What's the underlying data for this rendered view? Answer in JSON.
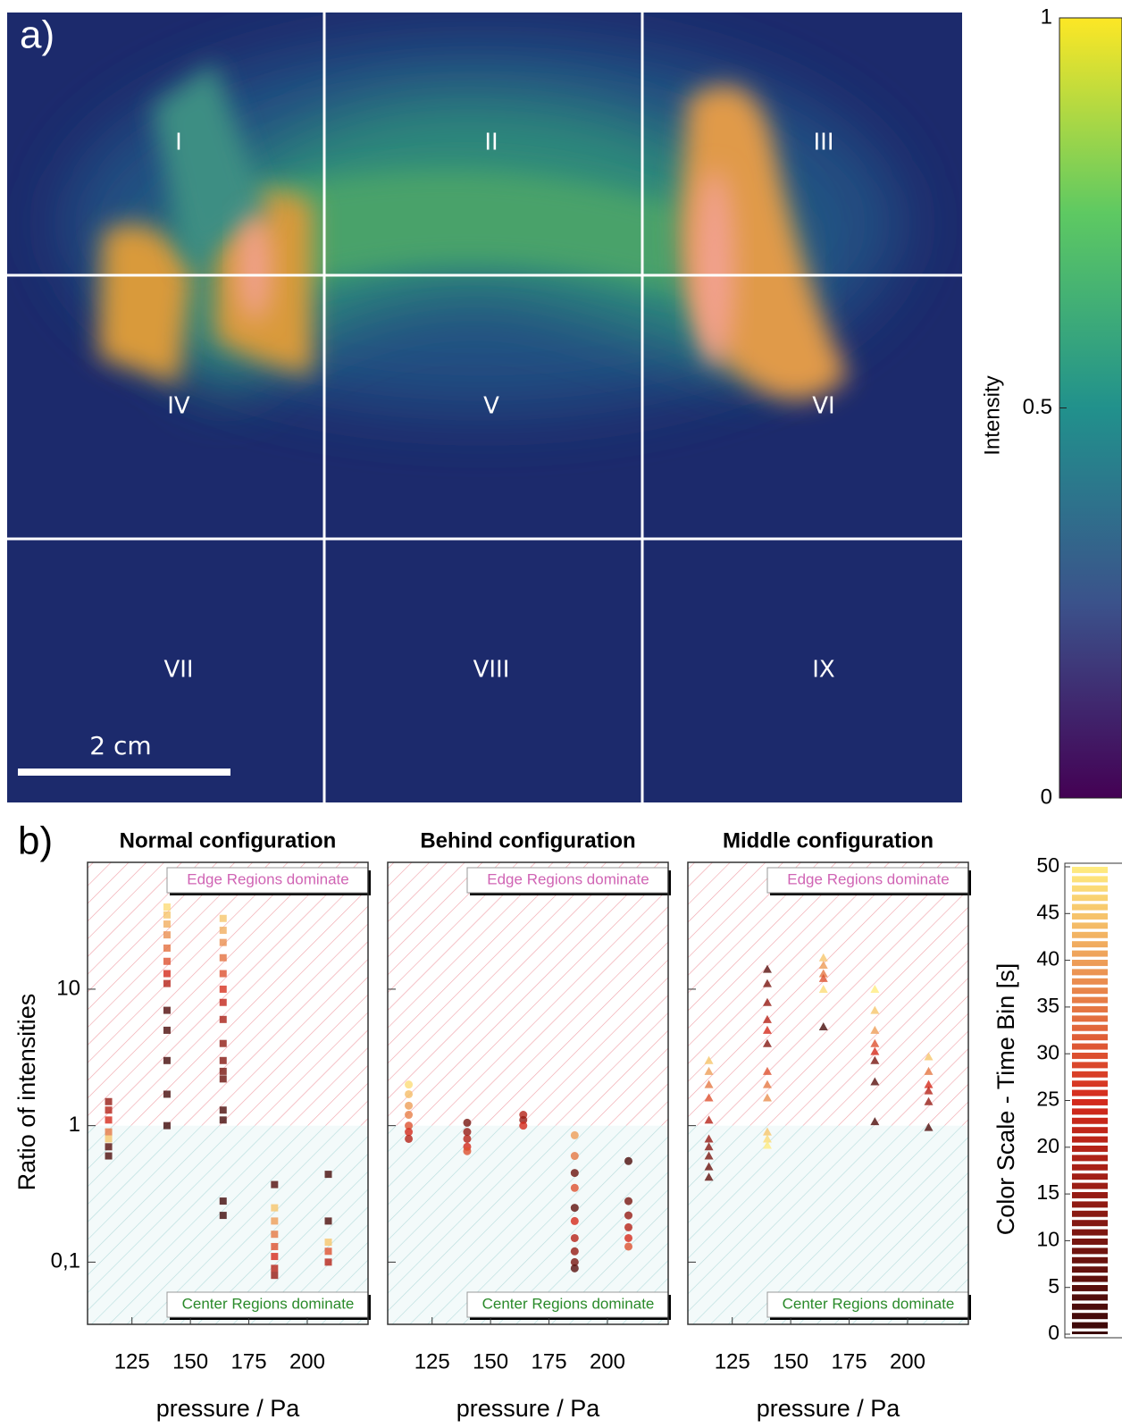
{
  "panel_a": {
    "label": "a)",
    "regions": [
      "I",
      "II",
      "III",
      "IV",
      "V",
      "VI",
      "VII",
      "VIII",
      "IX"
    ],
    "scale_bar": "2 cm",
    "colorbar": {
      "label": "Intensity",
      "lim": [
        0,
        1
      ],
      "ticks": [
        0,
        0.5,
        1
      ],
      "colors": [
        "#440154",
        "#3b528b",
        "#21918c",
        "#5ec962",
        "#fde725"
      ]
    }
  },
  "panel_b_label": "b)",
  "chart_data": [
    {
      "type": "scatter",
      "marker": "square",
      "title": "Normal configuration",
      "x_label": "pressure / Pa",
      "y_label": "Ratio of intensities",
      "log_y": true,
      "xlim": [
        106,
        226
      ],
      "ylim": [
        0.035,
        85
      ],
      "xticks": [
        125,
        150,
        175,
        200
      ],
      "yticks": [
        {
          "value": 0.1,
          "label": "0,1"
        },
        1,
        10
      ],
      "show_ytick_labels": true,
      "divide": 1,
      "edge_note": "Edge Regions dominate",
      "center_note": "Center Regions dominate",
      "x": [
        115,
        115,
        115,
        115,
        115,
        115,
        115,
        140,
        140,
        140,
        140,
        140,
        140,
        140,
        140,
        140,
        140,
        140,
        140,
        140,
        164,
        164,
        164,
        164,
        164,
        164,
        164,
        164,
        164,
        164,
        164,
        164,
        164,
        164,
        164,
        164,
        186,
        186,
        186,
        186,
        186,
        186,
        186,
        186,
        209,
        209,
        209,
        209,
        209
      ],
      "values": [
        1.5,
        1.3,
        1.1,
        0.9,
        0.8,
        0.7,
        0.6,
        40,
        35,
        30,
        25,
        20,
        16,
        13,
        11,
        7,
        5,
        3,
        1.7,
        1.0,
        33,
        27,
        22,
        17,
        13,
        10,
        8,
        6,
        4,
        3,
        2.5,
        2.2,
        1.3,
        1.1,
        0.28,
        0.22,
        0.37,
        0.25,
        0.2,
        0.16,
        0.13,
        0.11,
        0.09,
        0.08,
        0.44,
        0.2,
        0.14,
        0.12,
        0.1
      ],
      "t": [
        15,
        20,
        25,
        35,
        45,
        5,
        3,
        48,
        45,
        42,
        38,
        34,
        30,
        25,
        20,
        4,
        3,
        2,
        2,
        1,
        45,
        42,
        38,
        34,
        30,
        26,
        22,
        18,
        14,
        12,
        10,
        8,
        3,
        2,
        1,
        1,
        4,
        45,
        40,
        35,
        30,
        25,
        20,
        15,
        2,
        3,
        45,
        30,
        20
      ]
    },
    {
      "type": "scatter",
      "marker": "circle",
      "title": "Behind configuration",
      "x_label": "pressure / Pa",
      "log_y": true,
      "xlim": [
        106,
        226
      ],
      "ylim": [
        0.035,
        85
      ],
      "xticks": [
        125,
        150,
        175,
        200
      ],
      "yticks": [
        0.1,
        1,
        10
      ],
      "show_ytick_labels": false,
      "divide": 1,
      "edge_note": "Edge Regions dominate",
      "center_note": "Center Regions dominate",
      "x": [
        115,
        115,
        115,
        115,
        115,
        115,
        115,
        140,
        140,
        140,
        140,
        140,
        164,
        164,
        164,
        186,
        186,
        186,
        186,
        186,
        186,
        186,
        186,
        186,
        186,
        209,
        209,
        209,
        209,
        209,
        209
      ],
      "values": [
        2.0,
        1.7,
        1.4,
        1.2,
        1.0,
        0.9,
        0.8,
        1.05,
        0.9,
        0.8,
        0.7,
        0.65,
        1.2,
        1.1,
        1.0,
        0.85,
        0.6,
        0.45,
        0.35,
        0.25,
        0.2,
        0.15,
        0.12,
        0.1,
        0.09,
        0.55,
        0.28,
        0.22,
        0.18,
        0.15,
        0.13
      ],
      "t": [
        48,
        44,
        40,
        36,
        30,
        25,
        20,
        10,
        15,
        20,
        25,
        30,
        20,
        15,
        25,
        40,
        35,
        8,
        30,
        6,
        25,
        20,
        15,
        10,
        5,
        3,
        10,
        15,
        20,
        25,
        30
      ]
    },
    {
      "type": "scatter",
      "marker": "triangle",
      "title": "Middle configuration",
      "x_label": "pressure / Pa",
      "log_y": true,
      "xlim": [
        106,
        226
      ],
      "ylim": [
        0.035,
        85
      ],
      "xticks": [
        125,
        150,
        175,
        200
      ],
      "yticks": [
        0.1,
        1,
        10
      ],
      "show_ytick_labels": false,
      "divide": 1,
      "edge_note": "Edge Regions dominate",
      "center_note": "Center Regions dominate",
      "x": [
        115,
        115,
        115,
        115,
        115,
        115,
        115,
        115,
        115,
        115,
        140,
        140,
        140,
        140,
        140,
        140,
        140,
        140,
        140,
        140,
        140,
        140,
        164,
        164,
        164,
        164,
        164,
        164,
        186,
        186,
        186,
        186,
        186,
        186,
        186,
        186,
        209,
        209,
        209,
        209,
        209,
        209
      ],
      "values": [
        3,
        2.5,
        2,
        1.6,
        1.1,
        0.8,
        0.7,
        0.6,
        0.5,
        0.42,
        14,
        11,
        8,
        6,
        5,
        4,
        2.5,
        2,
        1.6,
        0.9,
        0.8,
        0.72,
        17,
        15,
        13,
        12,
        10,
        5.3,
        10,
        7,
        5,
        4,
        3.5,
        3,
        2.1,
        1.07,
        3.2,
        2.5,
        2,
        1.8,
        1.5,
        0.97
      ],
      "t": [
        45,
        40,
        35,
        30,
        20,
        15,
        12,
        10,
        8,
        6,
        5,
        10,
        15,
        20,
        25,
        12,
        30,
        35,
        38,
        45,
        48,
        50,
        45,
        40,
        35,
        30,
        48,
        2,
        50,
        45,
        40,
        30,
        25,
        10,
        5,
        3,
        45,
        35,
        25,
        20,
        15,
        3
      ]
    }
  ],
  "time_colorbar": {
    "label": "Color Scale - Time Bin [s]",
    "lim": [
      0,
      50
    ],
    "ticks": [
      0,
      5,
      10,
      15,
      20,
      25,
      30,
      35,
      40,
      45,
      50
    ],
    "colors": [
      "#3a0808",
      "#d42a1c",
      "#ffec80"
    ]
  }
}
